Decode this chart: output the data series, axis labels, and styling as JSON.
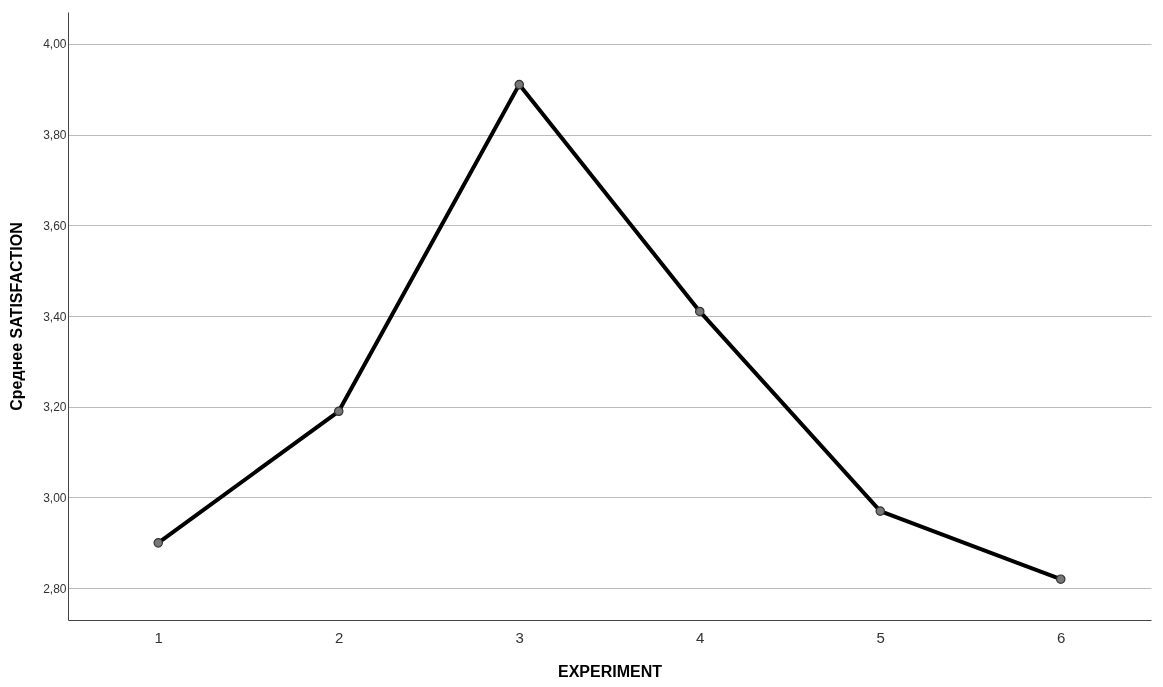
{
  "chart_data": {
    "type": "line",
    "xlabel": "EXPERIMENT",
    "ylabel": "Среднее SATISFACTION",
    "categories": [
      "1",
      "2",
      "3",
      "4",
      "5",
      "6"
    ],
    "series": [
      {
        "color": "#000000",
        "values": [
          2.9,
          3.19,
          3.91,
          3.41,
          2.97,
          2.82
        ]
      }
    ],
    "ylim": [
      2.73,
      4.07
    ],
    "yticks": [
      {
        "value": 2.8,
        "label": "2,80"
      },
      {
        "value": 3.0,
        "label": "3,00"
      },
      {
        "value": 3.2,
        "label": "3,20"
      },
      {
        "value": 3.4,
        "label": "3,40"
      },
      {
        "value": 3.6,
        "label": "3,60"
      },
      {
        "value": 3.8,
        "label": "3,80"
      },
      {
        "value": 4.0,
        "label": "4,00"
      }
    ],
    "grid": "y",
    "marker": "circle",
    "line_style": "solid"
  }
}
